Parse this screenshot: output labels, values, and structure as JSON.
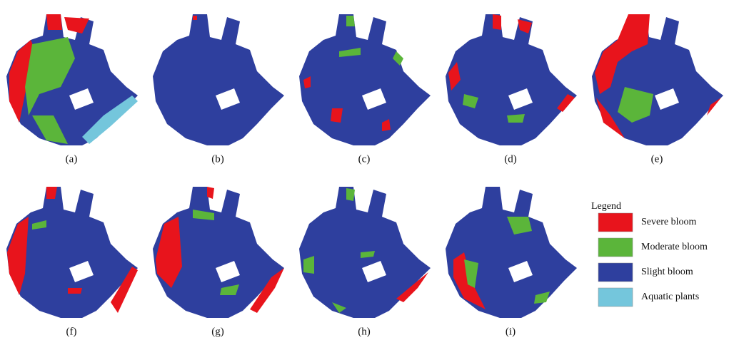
{
  "panels": [
    {
      "label": "(a)"
    },
    {
      "label": "(b)"
    },
    {
      "label": "(c)"
    },
    {
      "label": "(d)"
    },
    {
      "label": "(e)"
    },
    {
      "label": "(f)"
    },
    {
      "label": "(g)"
    },
    {
      "label": "(h)"
    },
    {
      "label": "(i)"
    }
  ],
  "legend": {
    "title": "Legend",
    "items": [
      {
        "name": "Severe bloom",
        "color": "#e8141c"
      },
      {
        "name": "Moderate bloom",
        "color": "#5bb53a"
      },
      {
        "name": "Slight bloom",
        "color": "#2e3f9e"
      },
      {
        "name": "Aquatic plants",
        "color": "#74c6dc"
      }
    ]
  }
}
